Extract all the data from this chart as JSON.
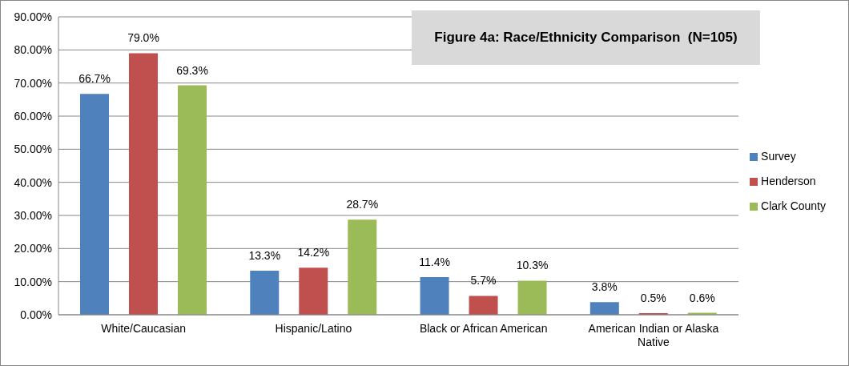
{
  "chart_data": {
    "type": "bar",
    "title": "Figure 4a: Race/Ethnicity Comparison  (N=105)",
    "categories": [
      "White/Caucasian",
      "Hispanic/Latino",
      "Black or African American",
      "American Indian or Alaska Native"
    ],
    "series": [
      {
        "name": "Survey",
        "color": "#4f81bd",
        "values": [
          66.7,
          13.3,
          11.4,
          3.8
        ],
        "value_labels": [
          "66.7%",
          "13.3%",
          "11.4%",
          "3.8%"
        ]
      },
      {
        "name": "Henderson",
        "color": "#c0504d",
        "values": [
          79.0,
          14.2,
          5.7,
          0.5
        ],
        "value_labels": [
          "79.0%",
          "14.2%",
          "5.7%",
          "0.5%"
        ]
      },
      {
        "name": "Clark County",
        "color": "#9bbb59",
        "values": [
          69.3,
          28.7,
          10.3,
          0.6
        ],
        "value_labels": [
          "69.3%",
          "28.7%",
          "10.3%",
          "0.6%"
        ]
      }
    ],
    "ylim": [
      0,
      90
    ],
    "yticks": [
      {
        "value": 0,
        "label": "0.00%"
      },
      {
        "value": 10,
        "label": "10.00%"
      },
      {
        "value": 20,
        "label": "20.00%"
      },
      {
        "value": 30,
        "label": "30.00%"
      },
      {
        "value": 40,
        "label": "40.00%"
      },
      {
        "value": 50,
        "label": "50.00%"
      },
      {
        "value": 60,
        "label": "60.00%"
      },
      {
        "value": 70,
        "label": "70.00%"
      },
      {
        "value": 80,
        "label": "80.00%"
      },
      {
        "value": 90,
        "label": "90.00%"
      }
    ],
    "grid": "y",
    "legend": "right"
  }
}
